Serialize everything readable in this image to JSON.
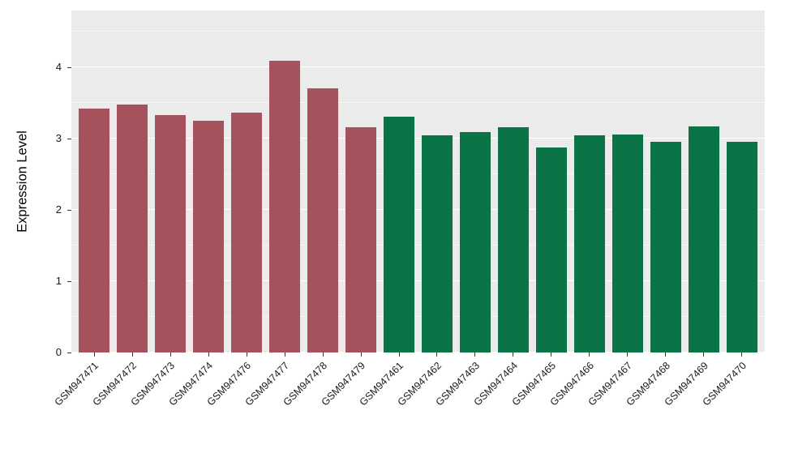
{
  "chart_data": {
    "type": "bar",
    "title": "",
    "xlabel": "",
    "ylabel": "Expression Level",
    "categories": [
      "GSM947471",
      "GSM947472",
      "GSM947473",
      "GSM947474",
      "GSM947476",
      "GSM947477",
      "GSM947478",
      "GSM947479",
      "GSM947461",
      "GSM947462",
      "GSM947463",
      "GSM947464",
      "GSM947465",
      "GSM947466",
      "GSM947467",
      "GSM947468",
      "GSM947469",
      "GSM947470"
    ],
    "values": [
      3.42,
      3.48,
      3.33,
      3.25,
      3.36,
      4.09,
      3.71,
      3.16,
      3.31,
      3.04,
      3.09,
      3.16,
      2.88,
      3.05,
      3.06,
      2.96,
      3.17,
      2.96
    ],
    "groups": [
      "g1",
      "g1",
      "g1",
      "g1",
      "g1",
      "g1",
      "g1",
      "g1",
      "g2",
      "g2",
      "g2",
      "g2",
      "g2",
      "g2",
      "g2",
      "g2",
      "g2",
      "g2"
    ],
    "group_colors": {
      "g1": "#A6525C",
      "g2": "#0A7447"
    },
    "yticks": [
      0,
      1,
      2,
      3,
      4
    ],
    "ylim": [
      0,
      4.8
    ],
    "grid": true,
    "legend": "none",
    "panel_background": "#EBEBEB",
    "grid_color": "#FFFFFF"
  }
}
